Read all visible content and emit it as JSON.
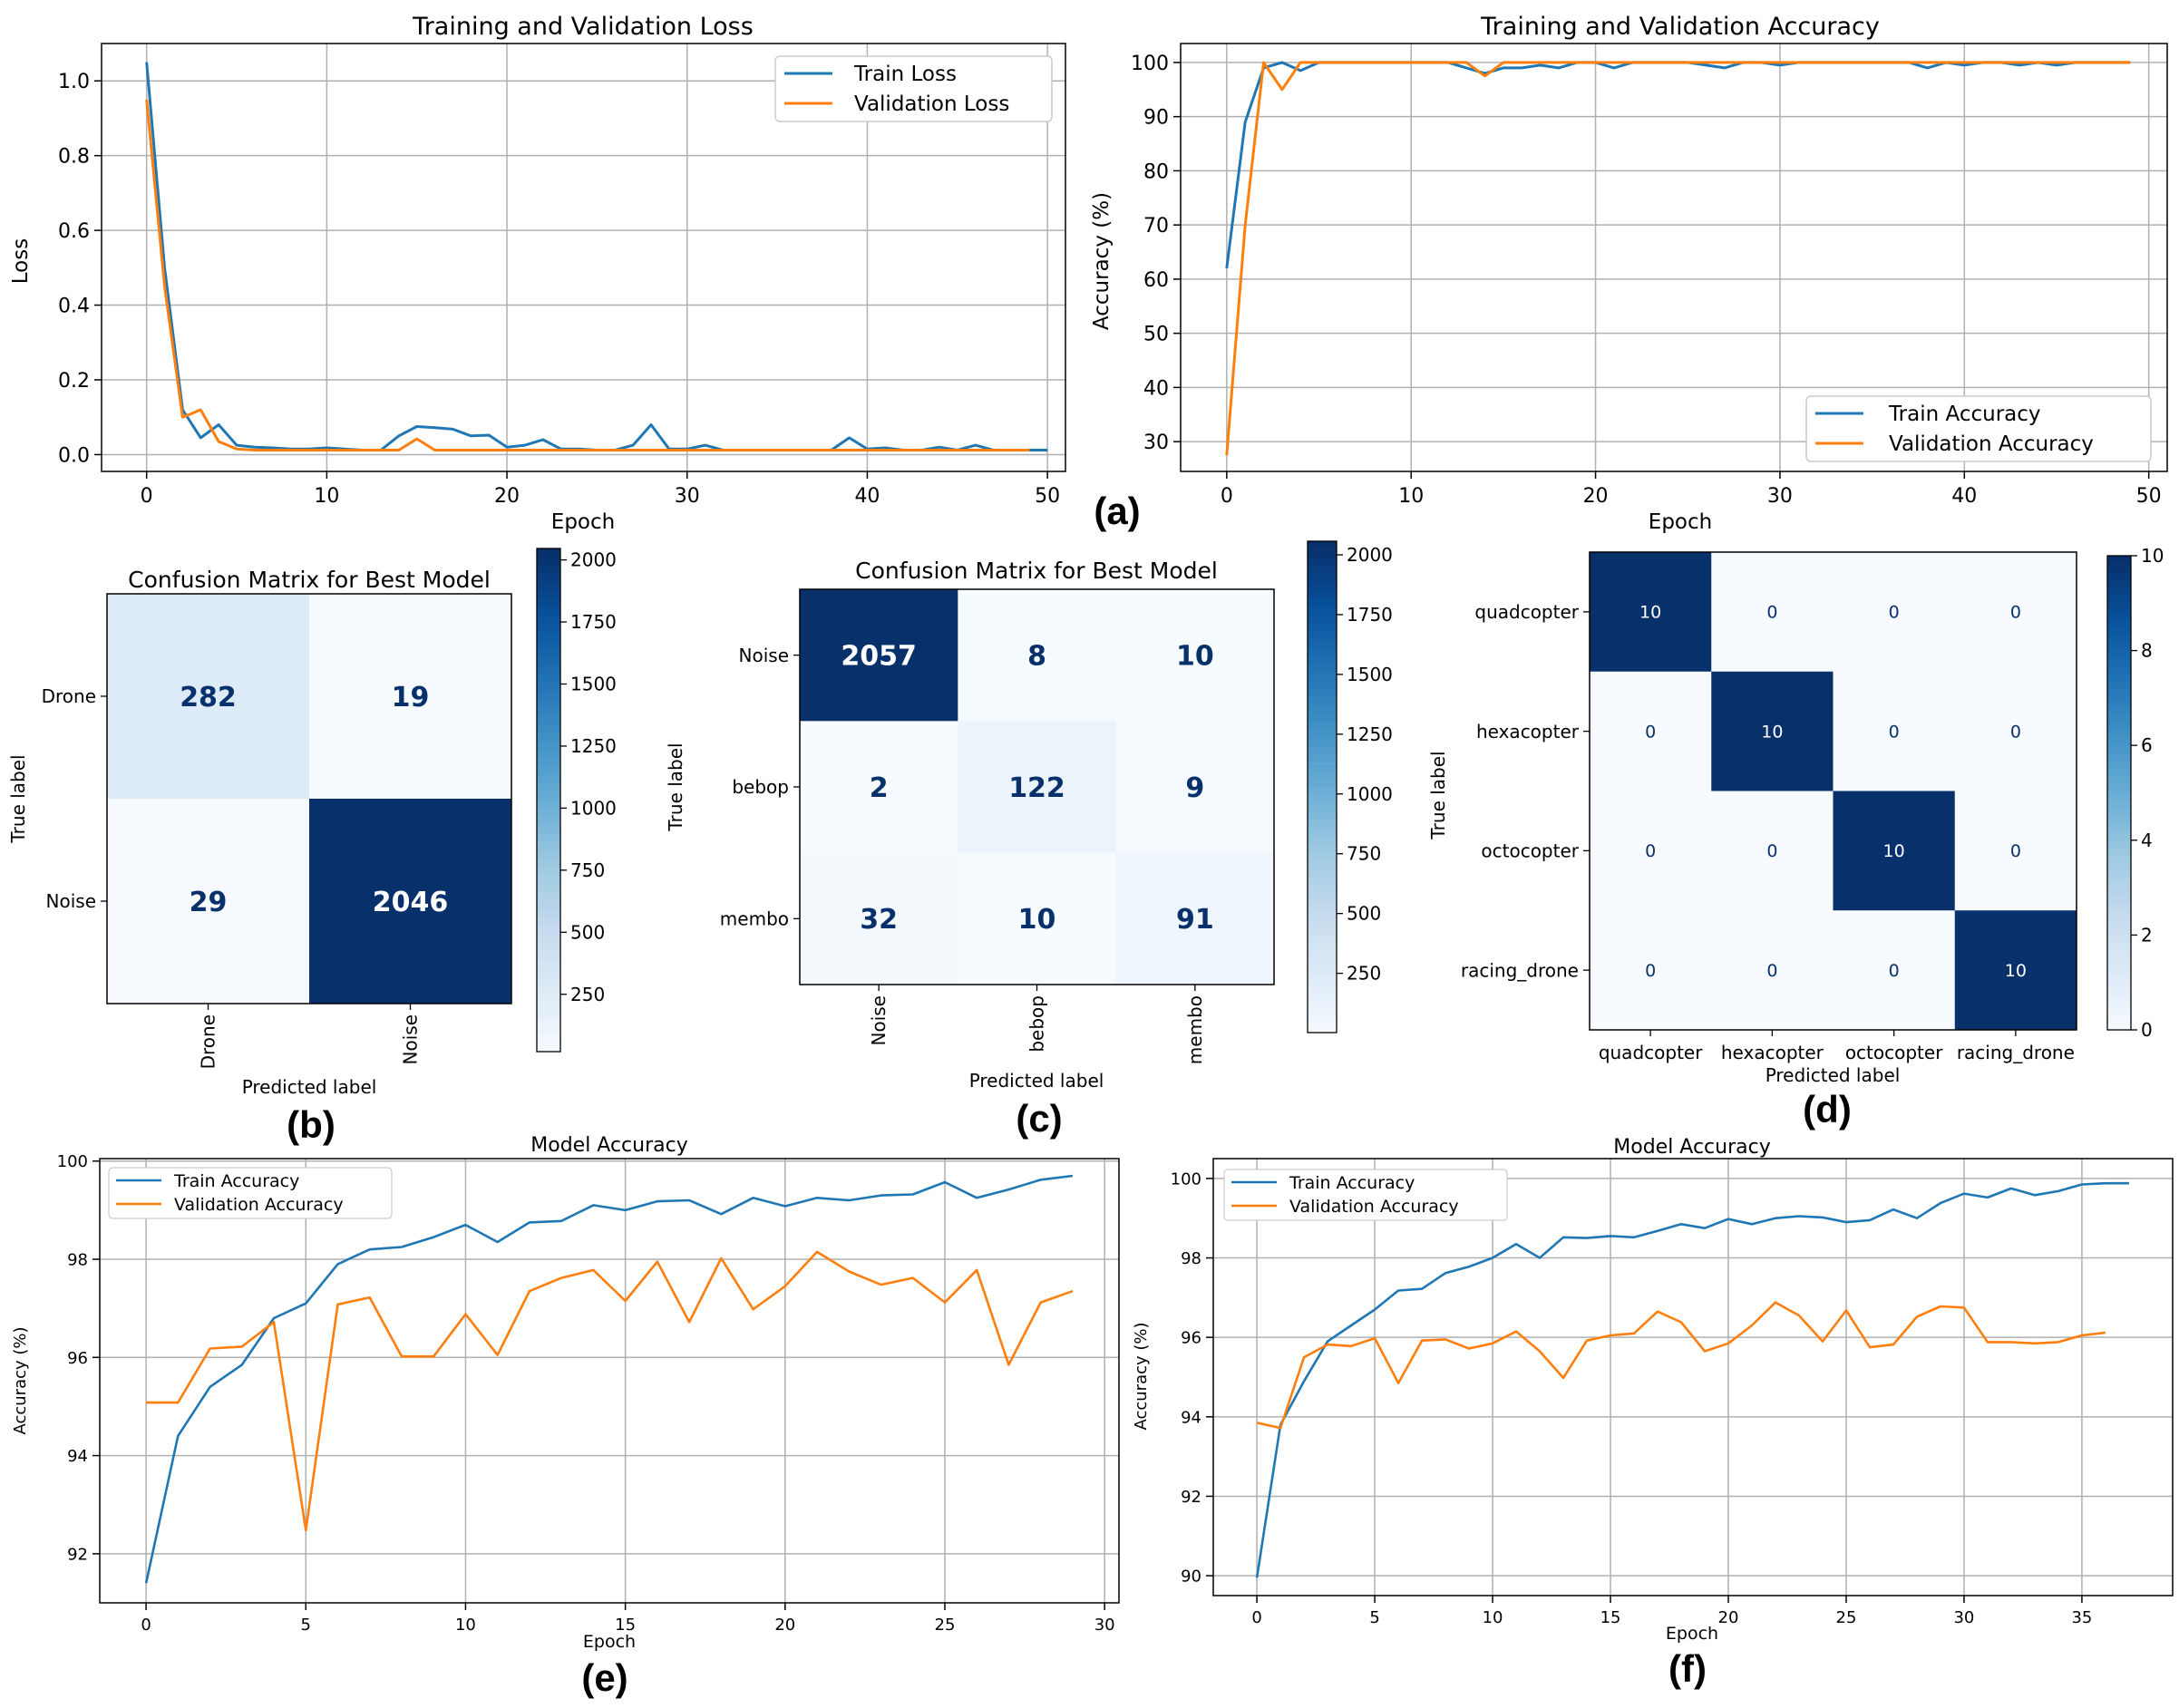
{
  "panel_labels": {
    "a": "(a)",
    "b": "(b)",
    "c": "(c)",
    "d": "(d)",
    "e": "(e)",
    "f": "(f)"
  },
  "colors": {
    "train": "#1f77b4",
    "val": "#ff7f0e",
    "grid": "#b0b0b0"
  },
  "chart_data": [
    {
      "id": "a1",
      "type": "line",
      "title": "Training and Validation Loss",
      "xlabel": "Epoch",
      "ylabel": "Loss",
      "xlim": [
        -2.5,
        51
      ],
      "ylim": [
        -0.045,
        1.1
      ],
      "xticks": [
        0,
        10,
        20,
        30,
        40,
        50
      ],
      "yticks": [
        0.0,
        0.2,
        0.4,
        0.6,
        0.8,
        1.0
      ],
      "ytick_labels": [
        "0.0",
        "0.2",
        "0.4",
        "0.6",
        "0.8",
        "1.0"
      ],
      "legend": "top-right",
      "series": [
        {
          "name": "Train Loss",
          "color": "#1f77b4",
          "x_start": 0,
          "values": [
            1.05,
            0.5,
            0.12,
            0.045,
            0.08,
            0.025,
            0.02,
            0.018,
            0.015,
            0.015,
            0.018,
            0.015,
            0.012,
            0.012,
            0.05,
            0.075,
            0.072,
            0.068,
            0.05,
            0.052,
            0.02,
            0.025,
            0.04,
            0.015,
            0.015,
            0.012,
            0.012,
            0.025,
            0.08,
            0.015,
            0.015,
            0.025,
            0.012,
            0.012,
            0.012,
            0.012,
            0.012,
            0.012,
            0.012,
            0.045,
            0.015,
            0.018,
            0.012,
            0.012,
            0.02,
            0.012,
            0.025,
            0.012,
            0.012,
            0.012,
            0.012
          ]
        },
        {
          "name": "Validation Loss",
          "color": "#ff7f0e",
          "x_start": 0,
          "values": [
            0.95,
            0.45,
            0.1,
            0.12,
            0.035,
            0.015,
            0.012,
            0.012,
            0.012,
            0.012,
            0.012,
            0.012,
            0.012,
            0.012,
            0.012,
            0.042,
            0.012,
            0.012,
            0.012,
            0.012,
            0.012,
            0.012,
            0.012,
            0.012,
            0.012,
            0.012,
            0.012,
            0.012,
            0.012,
            0.012,
            0.012,
            0.012,
            0.012,
            0.012,
            0.012,
            0.012,
            0.012,
            0.012,
            0.012,
            0.012,
            0.012,
            0.012,
            0.012,
            0.012,
            0.012,
            0.012,
            0.012,
            0.012,
            0.012,
            0.012
          ]
        }
      ]
    },
    {
      "id": "a2",
      "type": "line",
      "title": "Training and Validation Accuracy",
      "xlabel": "Epoch",
      "ylabel": "Accuracy (%)",
      "xlim": [
        -2.5,
        51
      ],
      "ylim": [
        24.5,
        103.5
      ],
      "xticks": [
        0,
        10,
        20,
        30,
        40,
        50
      ],
      "yticks": [
        30,
        40,
        50,
        60,
        70,
        80,
        90,
        100
      ],
      "legend": "bottom-right",
      "series": [
        {
          "name": "Train Accuracy",
          "color": "#1f77b4",
          "x_start": 0,
          "values": [
            62,
            89,
            99,
            100,
            98.5,
            100,
            100,
            100,
            100,
            100,
            100,
            100,
            100,
            99,
            98,
            99,
            99,
            99.5,
            99,
            100,
            100,
            99,
            100,
            100,
            100,
            100,
            99.5,
            99,
            100,
            100,
            99.5,
            100,
            100,
            100,
            100,
            100,
            100,
            100,
            99,
            100,
            99.5,
            100,
            100,
            99.5,
            100,
            99.5,
            100,
            100,
            100,
            100
          ]
        },
        {
          "name": "Validation Accuracy",
          "color": "#ff7f0e",
          "x_start": 0,
          "values": [
            27.5,
            70,
            100,
            95,
            100,
            100,
            100,
            100,
            100,
            100,
            100,
            100,
            100,
            100,
            97.5,
            100,
            100,
            100,
            100,
            100,
            100,
            100,
            100,
            100,
            100,
            100,
            100,
            100,
            100,
            100,
            100,
            100,
            100,
            100,
            100,
            100,
            100,
            100,
            100,
            100,
            100,
            100,
            100,
            100,
            100,
            100,
            100,
            100,
            100,
            100
          ]
        }
      ]
    },
    {
      "id": "b",
      "type": "heatmap",
      "title": "Confusion Matrix for Best Model",
      "xlabel": "Predicted label",
      "ylabel": "True label",
      "labels": [
        "Drone",
        "Noise"
      ],
      "matrix": [
        [
          282,
          19
        ],
        [
          29,
          2046
        ]
      ],
      "vmin": 19,
      "vmax": 2046,
      "colorbar_ticks": [
        250,
        500,
        750,
        1000,
        1250,
        1500,
        1750,
        2000
      ]
    },
    {
      "id": "c",
      "type": "heatmap",
      "title": "Confusion Matrix for Best Model",
      "xlabel": "Predicted label",
      "ylabel": "True label",
      "labels": [
        "Noise",
        "bebop",
        "membo"
      ],
      "matrix": [
        [
          2057,
          8,
          10
        ],
        [
          2,
          122,
          9
        ],
        [
          32,
          10,
          91
        ]
      ],
      "vmin": 2,
      "vmax": 2057,
      "colorbar_ticks": [
        250,
        500,
        750,
        1000,
        1250,
        1500,
        1750,
        2000
      ]
    },
    {
      "id": "d",
      "type": "heatmap",
      "title": "",
      "xlabel": "Predicted label",
      "ylabel": "True label",
      "labels": [
        "quadcopter",
        "hexacopter",
        "octocopter",
        "racing_drone"
      ],
      "matrix": [
        [
          10,
          0,
          0,
          0
        ],
        [
          0,
          10,
          0,
          0
        ],
        [
          0,
          0,
          10,
          0
        ],
        [
          0,
          0,
          0,
          10
        ]
      ],
      "vmin": 0,
      "vmax": 10,
      "colorbar_ticks": [
        0,
        2,
        4,
        6,
        8,
        10
      ]
    },
    {
      "id": "e",
      "type": "line",
      "title": "Model Accuracy",
      "xlabel": "Epoch",
      "ylabel": "Accuracy (%)",
      "xlim": [
        -1.45,
        30.45
      ],
      "ylim": [
        91.0,
        100.05
      ],
      "xticks": [
        0,
        5,
        10,
        15,
        20,
        25,
        30
      ],
      "yticks": [
        92,
        94,
        96,
        98,
        100
      ],
      "legend": "top-left",
      "series": [
        {
          "name": "Train Accuracy",
          "color": "#1f77b4",
          "x_start": 0,
          "values": [
            91.4,
            94.4,
            95.4,
            95.85,
            96.8,
            97.1,
            97.9,
            98.2,
            98.25,
            98.45,
            98.7,
            98.35,
            98.75,
            98.78,
            99.1,
            99.0,
            99.18,
            99.2,
            98.92,
            99.25,
            99.08,
            99.25,
            99.2,
            99.3,
            99.32,
            99.57,
            99.25,
            99.42,
            99.62,
            99.7
          ]
        },
        {
          "name": "Validation Accuracy",
          "color": "#ff7f0e",
          "x_start": 0,
          "values": [
            95.08,
            95.08,
            96.18,
            96.22,
            96.72,
            92.48,
            97.08,
            97.22,
            96.02,
            96.02,
            96.88,
            96.05,
            97.35,
            97.62,
            97.78,
            97.15,
            97.95,
            96.72,
            98.02,
            96.98,
            97.45,
            98.15,
            97.75,
            97.48,
            97.62,
            97.12,
            97.78,
            95.85,
            97.12,
            97.35
          ]
        }
      ]
    },
    {
      "id": "f",
      "type": "line",
      "title": "Model Accuracy",
      "xlabel": "Epoch",
      "ylabel": "Accuracy (%)",
      "xlim": [
        -1.85,
        38.85
      ],
      "ylim": [
        89.5,
        100.5
      ],
      "xticks": [
        0,
        5,
        10,
        15,
        20,
        25,
        30,
        35
      ],
      "yticks": [
        90,
        92,
        94,
        96,
        98,
        100
      ],
      "legend": "top-left",
      "series": [
        {
          "name": "Train Accuracy",
          "color": "#1f77b4",
          "x_start": 0,
          "values": [
            89.95,
            93.8,
            94.9,
            95.9,
            96.3,
            96.7,
            97.18,
            97.22,
            97.62,
            97.78,
            98.0,
            98.35,
            98.0,
            98.52,
            98.5,
            98.55,
            98.52,
            98.68,
            98.85,
            98.75,
            98.98,
            98.85,
            99.0,
            99.05,
            99.02,
            98.9,
            98.95,
            99.22,
            99.0,
            99.38,
            99.62,
            99.52,
            99.75,
            99.58,
            99.68,
            99.85,
            99.88,
            99.88
          ]
        },
        {
          "name": "Validation Accuracy",
          "color": "#ff7f0e",
          "x_start": 0,
          "values": [
            93.85,
            93.72,
            95.5,
            95.82,
            95.78,
            95.98,
            94.85,
            95.92,
            95.95,
            95.72,
            95.85,
            96.15,
            95.65,
            94.98,
            95.92,
            96.05,
            96.1,
            96.65,
            96.38,
            95.65,
            95.85,
            96.3,
            96.88,
            96.55,
            95.9,
            96.68,
            95.75,
            95.82,
            96.52,
            96.78,
            96.75,
            95.88,
            95.88,
            95.85,
            95.88,
            96.05,
            96.12
          ]
        }
      ]
    }
  ]
}
